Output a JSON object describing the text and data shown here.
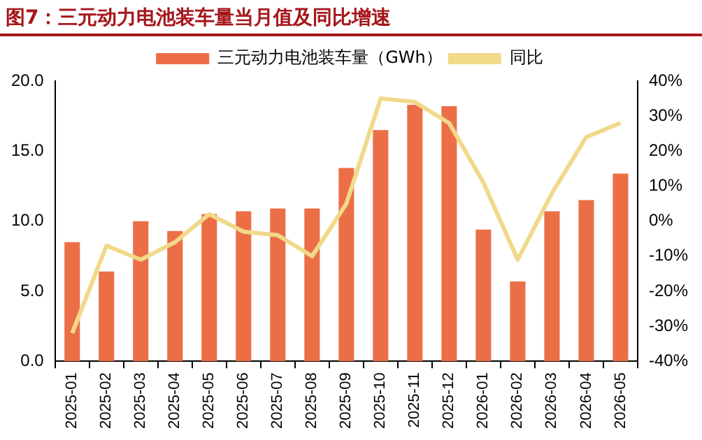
{
  "chart_data": {
    "type": "bar",
    "title": "图7：三元动力电池装车量当月值及同比增速",
    "categories": [
      "2025-01",
      "2025-02",
      "2025-03",
      "2025-04",
      "2025-05",
      "2025-06",
      "2025-07",
      "2025-08",
      "2025-09",
      "2025-10",
      "2025-11",
      "2025-12",
      "2026-01",
      "2026-02",
      "2026-03",
      "2026-04",
      "2026-05"
    ],
    "series": [
      {
        "name": "三元动力电池装车量（GWh）",
        "color": "#ec6e47",
        "values": [
          8.5,
          6.4,
          10.0,
          9.3,
          10.5,
          10.7,
          10.9,
          10.9,
          13.8,
          16.5,
          18.3,
          18.2,
          9.4,
          5.7,
          10.7,
          11.5,
          13.4
        ]
      },
      {
        "name": "同比",
        "type": "line",
        "axis": "y2",
        "color": "#f1d98a",
        "values": [
          -32,
          -7,
          -11,
          -6,
          2,
          -3,
          -4,
          -10,
          5,
          35,
          34,
          28,
          11,
          -11,
          8,
          24,
          28
        ]
      }
    ],
    "ylim": [
      0,
      20
    ],
    "yticks": [
      {
        "value": 0,
        "label": "0.0"
      },
      {
        "value": 5,
        "label": "5.0"
      },
      {
        "value": 10,
        "label": "10.0"
      },
      {
        "value": 15,
        "label": "15.0"
      },
      {
        "value": 20,
        "label": "20.0"
      }
    ],
    "y2lim": [
      -40,
      40
    ],
    "y2ticks": [
      {
        "value": -40,
        "label": "-40%"
      },
      {
        "value": -30,
        "label": "-30%"
      },
      {
        "value": -20,
        "label": "-20%"
      },
      {
        "value": -10,
        "label": "-10%"
      },
      {
        "value": 0,
        "label": "0%"
      },
      {
        "value": 10,
        "label": "10%"
      },
      {
        "value": 20,
        "label": "20%"
      },
      {
        "value": 30,
        "label": "30%"
      },
      {
        "value": 40,
        "label": "40%"
      }
    ],
    "grid": false,
    "legend": "top",
    "marker": "none",
    "line_style": "solid"
  }
}
